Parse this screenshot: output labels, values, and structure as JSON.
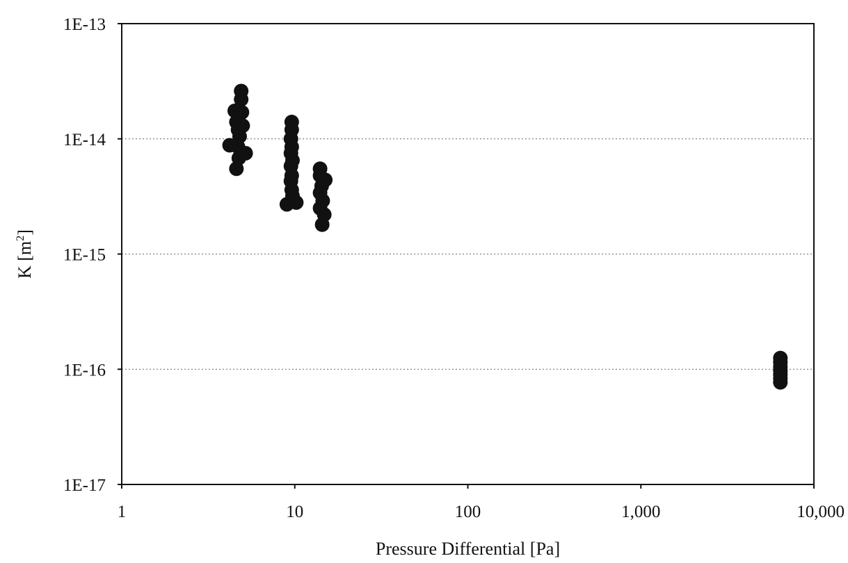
{
  "chart_data": {
    "type": "scatter",
    "xlabel": "Pressure Differential [Pa]",
    "ylabel_main": "K [m",
    "ylabel_sup": "2",
    "ylabel_close": "]",
    "x_scale": "log",
    "y_scale": "log",
    "xlim": [
      1,
      10000
    ],
    "ylim": [
      1e-17,
      1e-13
    ],
    "x_ticks": [
      {
        "value": 1,
        "label": "1"
      },
      {
        "value": 10,
        "label": "10"
      },
      {
        "value": 100,
        "label": "100"
      },
      {
        "value": 1000,
        "label": "1,000"
      },
      {
        "value": 10000,
        "label": "10,000"
      }
    ],
    "y_ticks": [
      {
        "value": 1e-13,
        "label": "1E-13"
      },
      {
        "value": 1e-14,
        "label": "1E-14"
      },
      {
        "value": 1e-15,
        "label": "1E-15"
      },
      {
        "value": 1e-16,
        "label": "1E-16"
      },
      {
        "value": 1e-17,
        "label": "1E-17"
      }
    ],
    "grid": "horizontal dotted",
    "marker_color": "#111111",
    "points": [
      {
        "x": 4.9,
        "y": 2.6e-14
      },
      {
        "x": 4.9,
        "y": 2.2e-14
      },
      {
        "x": 4.5,
        "y": 1.75e-14
      },
      {
        "x": 4.95,
        "y": 1.7e-14
      },
      {
        "x": 4.6,
        "y": 1.4e-14
      },
      {
        "x": 4.7,
        "y": 1.2e-14
      },
      {
        "x": 5.0,
        "y": 1.3e-14
      },
      {
        "x": 4.8,
        "y": 1.05e-14
      },
      {
        "x": 4.2,
        "y": 8.8e-15
      },
      {
        "x": 4.7,
        "y": 8.5e-15
      },
      {
        "x": 5.2,
        "y": 7.5e-15
      },
      {
        "x": 4.75,
        "y": 6.8e-15
      },
      {
        "x": 4.6,
        "y": 5.5e-15
      },
      {
        "x": 9.6,
        "y": 1.4e-14
      },
      {
        "x": 9.6,
        "y": 1.2e-14
      },
      {
        "x": 9.5,
        "y": 1e-14
      },
      {
        "x": 9.6,
        "y": 8.5e-15
      },
      {
        "x": 9.5,
        "y": 7.5e-15
      },
      {
        "x": 9.7,
        "y": 6.5e-15
      },
      {
        "x": 9.5,
        "y": 5.8e-15
      },
      {
        "x": 9.6,
        "y": 4.8e-15
      },
      {
        "x": 9.5,
        "y": 4.3e-15
      },
      {
        "x": 9.6,
        "y": 3.6e-15
      },
      {
        "x": 9.7,
        "y": 3.2e-15
      },
      {
        "x": 9.0,
        "y": 2.7e-15
      },
      {
        "x": 10.2,
        "y": 2.8e-15
      },
      {
        "x": 14.0,
        "y": 5.5e-15
      },
      {
        "x": 14.0,
        "y": 4.8e-15
      },
      {
        "x": 15.0,
        "y": 4.4e-15
      },
      {
        "x": 14.3,
        "y": 3.9e-15
      },
      {
        "x": 14.0,
        "y": 3.4e-15
      },
      {
        "x": 14.5,
        "y": 2.9e-15
      },
      {
        "x": 14.0,
        "y": 2.5e-15
      },
      {
        "x": 14.8,
        "y": 2.2e-15
      },
      {
        "x": 14.4,
        "y": 1.8e-15
      },
      {
        "x": 6400,
        "y": 1.25e-16
      },
      {
        "x": 6400,
        "y": 1.15e-16
      },
      {
        "x": 6400,
        "y": 1.05e-16
      },
      {
        "x": 6400,
        "y": 9.7e-17
      },
      {
        "x": 6400,
        "y": 9e-17
      },
      {
        "x": 6400,
        "y": 8.3e-17
      },
      {
        "x": 6400,
        "y": 7.7e-17
      }
    ]
  }
}
